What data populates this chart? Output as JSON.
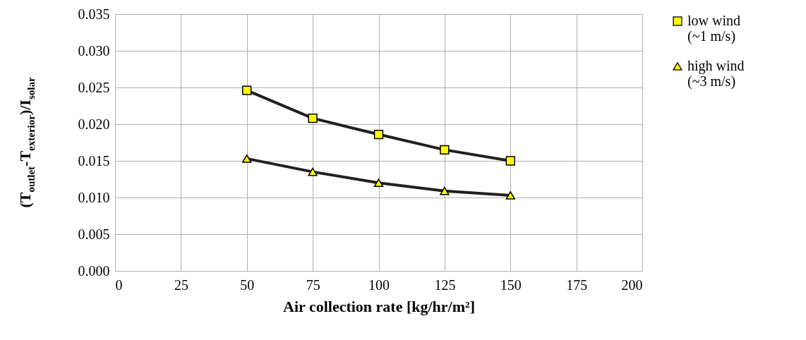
{
  "chart_data": {
    "type": "line",
    "xlabel": "Air collection rate [kg/hr/m²]",
    "ylabel": "(T$_{outlet}$-T$_{exterior}$)/I$_{solar}$",
    "x": [
      50,
      75,
      100,
      125,
      150
    ],
    "series": [
      {
        "name": "low wind (~1 m/s)",
        "color": "#231f20",
        "marker": "square",
        "values": [
          0.0246,
          0.0208,
          0.0186,
          0.0165,
          0.015
        ]
      },
      {
        "name": "high wind (~3 m/s)",
        "color": "#231f20",
        "marker": "triangle",
        "values": [
          0.0153,
          0.0135,
          0.012,
          0.0109,
          0.0103
        ]
      }
    ],
    "xlim": [
      0,
      200
    ],
    "xticks": [
      0,
      25,
      50,
      75,
      100,
      125,
      150,
      175,
      200
    ],
    "ylim": [
      0,
      0.035
    ],
    "yticks": [
      {
        "value": 0,
        "label": "0.000"
      },
      {
        "value": 0.005,
        "label": "0.005"
      },
      {
        "value": 0.01,
        "label": "0.010"
      },
      {
        "value": 0.015,
        "label": "0.015"
      },
      {
        "value": 0.02,
        "label": "0.020"
      },
      {
        "value": 0.025,
        "label": "0.025"
      },
      {
        "value": 0.03,
        "label": "0.030"
      },
      {
        "value": 0.035,
        "label": "0.035"
      }
    ],
    "grid": true,
    "legend": "right",
    "line_style": "solid"
  }
}
